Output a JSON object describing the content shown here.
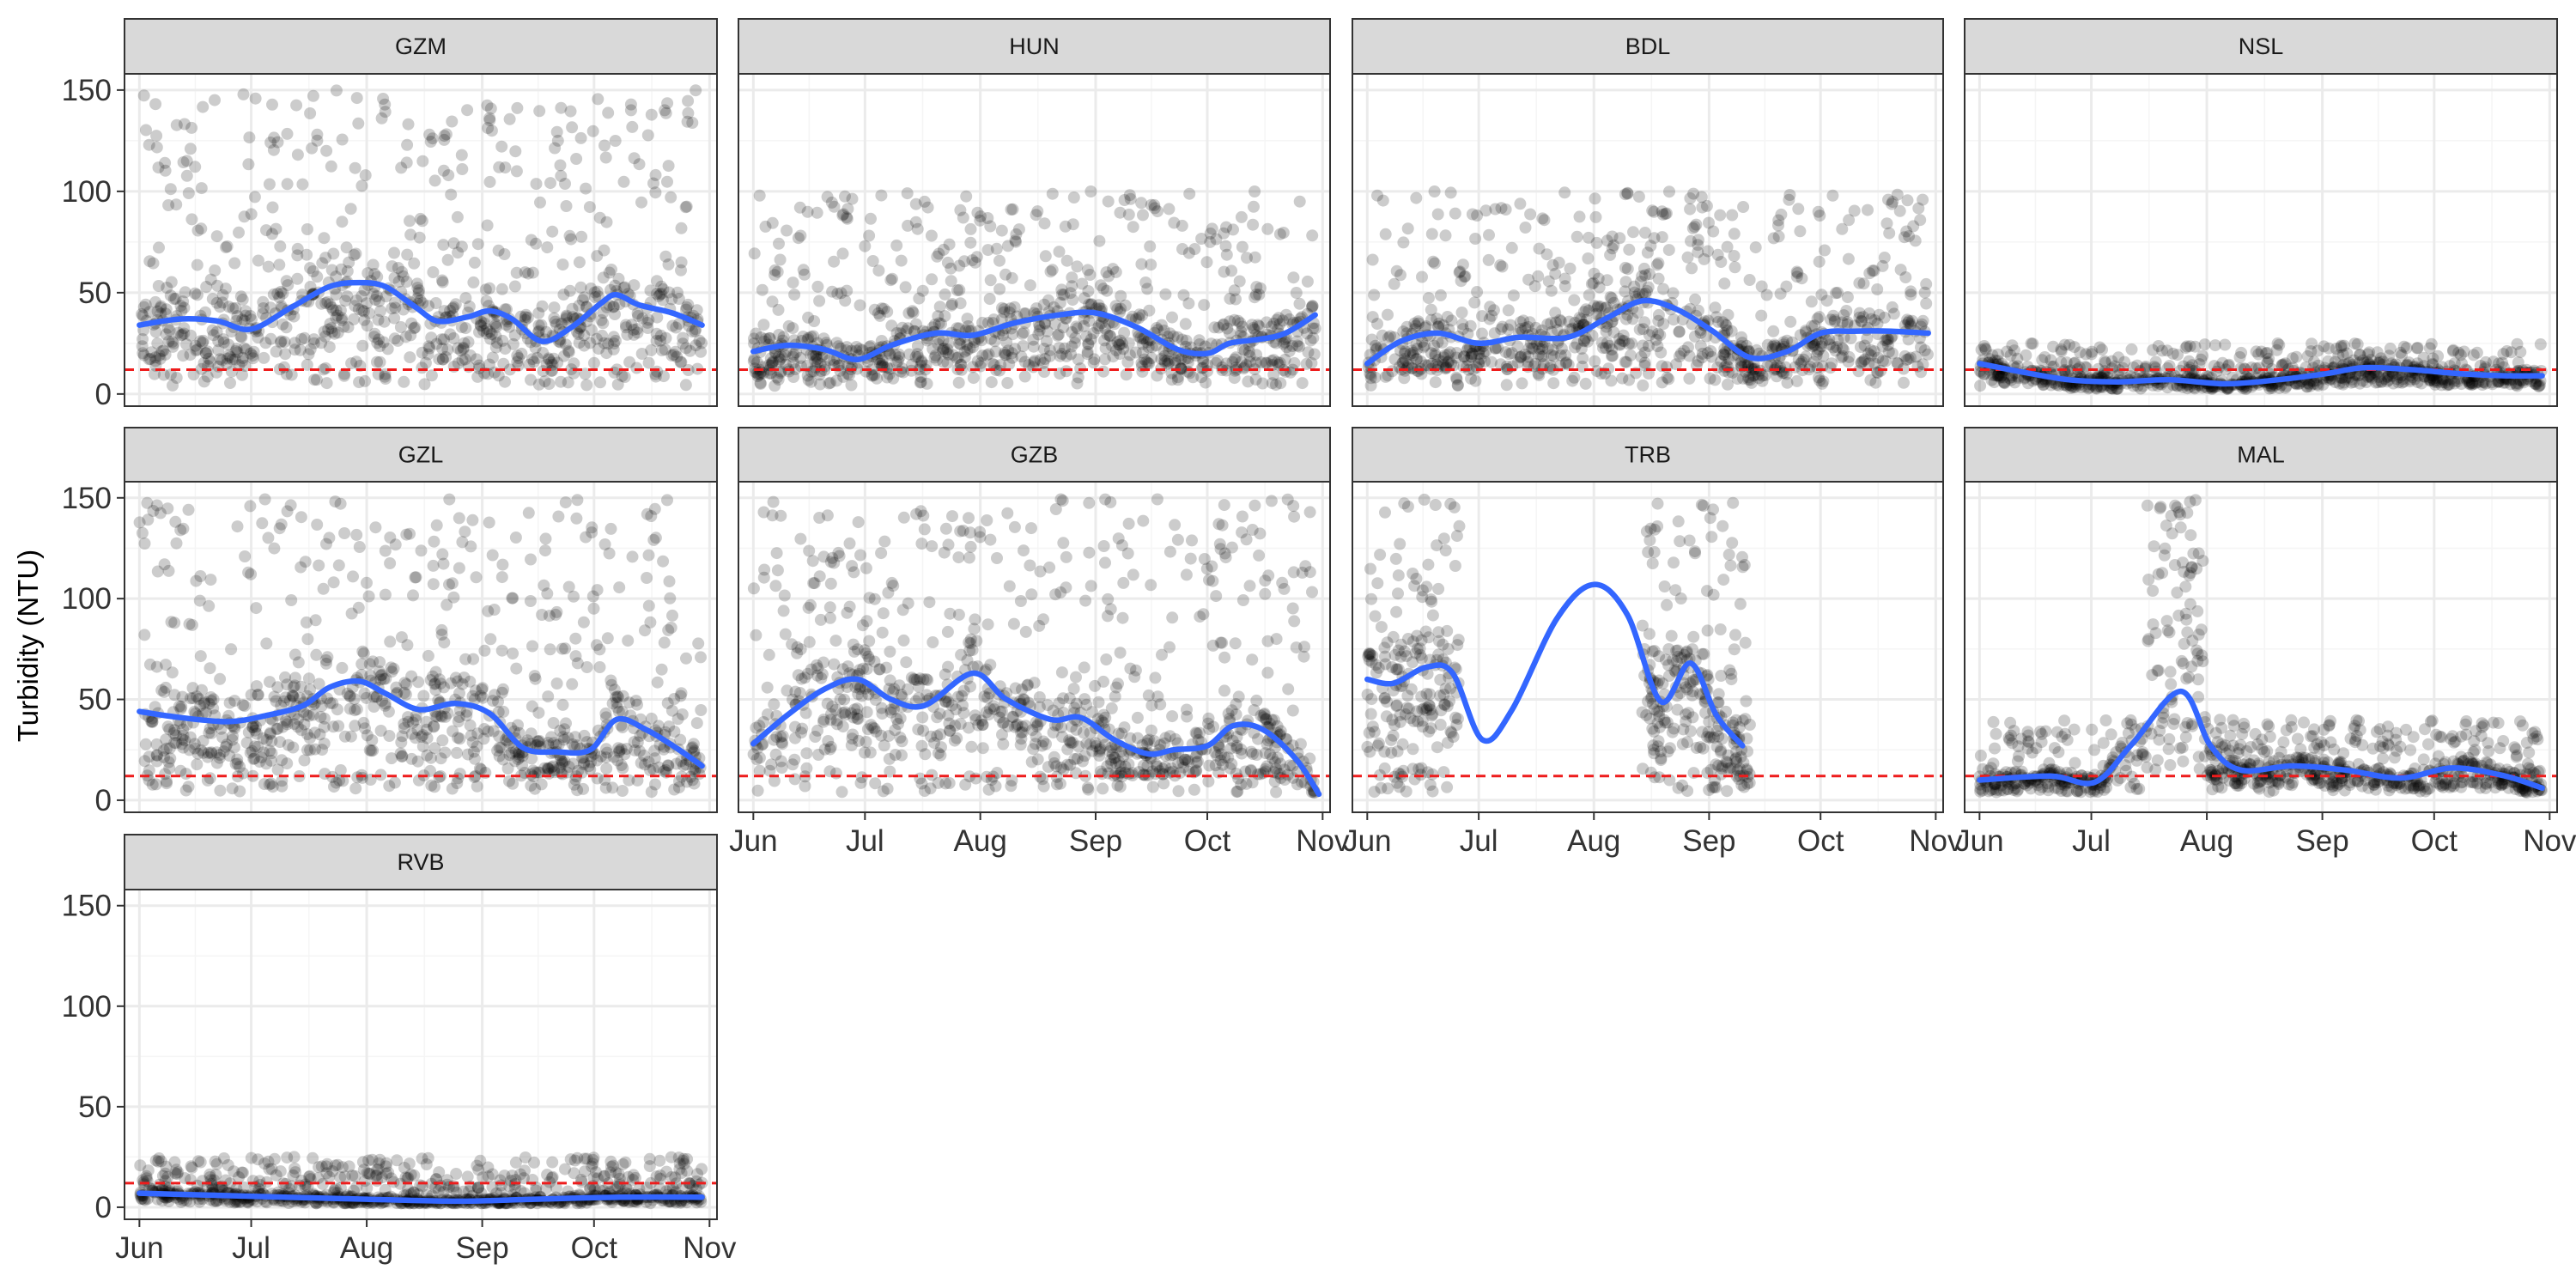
{
  "chart_data": {
    "type": "scatter",
    "ylabel": "Turbidity (NTU)",
    "xlabel": "",
    "x_ticks": [
      "Jun",
      "Jul",
      "Aug",
      "Sep",
      "Oct",
      "Nov"
    ],
    "xlim": [
      "2000-05-28",
      "2000-11-03"
    ],
    "y_ticks": [
      0,
      50,
      100,
      150
    ],
    "ylim": [
      -6,
      158
    ],
    "reference_line": {
      "y": 12,
      "style": "dashed",
      "color": "#ee1c1c"
    },
    "grid": true,
    "colors": {
      "points": "#000000",
      "smooth": "#3366ff",
      "strip": "#d9d9d9",
      "panel_border": "#333333",
      "grid_major": "#ebebeb",
      "grid_minor": "#f5f5f5"
    },
    "panels": [
      {
        "name": "GZM",
        "range": [
          "2000-06-01",
          "2000-10-30"
        ],
        "upper_hi": 150,
        "smooth": [
          [
            "2000-06-01",
            34
          ],
          [
            "2000-06-12",
            37
          ],
          [
            "2000-06-22",
            36
          ],
          [
            "2000-07-01",
            32
          ],
          [
            "2000-07-12",
            43
          ],
          [
            "2000-07-22",
            53
          ],
          [
            "2000-07-30",
            55
          ],
          [
            "2000-08-06",
            53
          ],
          [
            "2000-08-14",
            43
          ],
          [
            "2000-08-20",
            36
          ],
          [
            "2000-08-28",
            38
          ],
          [
            "2000-09-03",
            41
          ],
          [
            "2000-09-09",
            37
          ],
          [
            "2000-09-17",
            26
          ],
          [
            "2000-09-25",
            33
          ],
          [
            "2000-10-03",
            45
          ],
          [
            "2000-10-07",
            49
          ],
          [
            "2000-10-13",
            44
          ],
          [
            "2000-10-22",
            40
          ],
          [
            "2000-10-30",
            34
          ]
        ]
      },
      {
        "name": "HUN",
        "range": [
          "2000-06-01",
          "2000-10-30"
        ],
        "upper_hi": 100,
        "smooth": [
          [
            "2000-06-01",
            21
          ],
          [
            "2000-06-10",
            24
          ],
          [
            "2000-06-20",
            22
          ],
          [
            "2000-06-29",
            17
          ],
          [
            "2000-07-08",
            24
          ],
          [
            "2000-07-20",
            30
          ],
          [
            "2000-07-30",
            29
          ],
          [
            "2000-08-10",
            35
          ],
          [
            "2000-08-22",
            39
          ],
          [
            "2000-09-01",
            40
          ],
          [
            "2000-09-12",
            33
          ],
          [
            "2000-09-23",
            22
          ],
          [
            "2000-10-01",
            20
          ],
          [
            "2000-10-07",
            25
          ],
          [
            "2000-10-15",
            27
          ],
          [
            "2000-10-22",
            30
          ],
          [
            "2000-10-30",
            39
          ]
        ]
      },
      {
        "name": "BDL",
        "range": [
          "2000-06-01",
          "2000-10-30"
        ],
        "upper_hi": 100,
        "smooth": [
          [
            "2000-06-01",
            15
          ],
          [
            "2000-06-10",
            26
          ],
          [
            "2000-06-20",
            30
          ],
          [
            "2000-07-01",
            25
          ],
          [
            "2000-07-12",
            28
          ],
          [
            "2000-07-25",
            28
          ],
          [
            "2000-08-05",
            38
          ],
          [
            "2000-08-14",
            46
          ],
          [
            "2000-08-23",
            42
          ],
          [
            "2000-09-02",
            31
          ],
          [
            "2000-09-12",
            18
          ],
          [
            "2000-09-22",
            21
          ],
          [
            "2000-10-01",
            30
          ],
          [
            "2000-10-10",
            31
          ],
          [
            "2000-10-20",
            31
          ],
          [
            "2000-10-30",
            30
          ]
        ]
      },
      {
        "name": "NSL",
        "range": [
          "2000-06-01",
          "2000-10-30"
        ],
        "upper_hi": 25,
        "smooth": [
          [
            "2000-06-01",
            15
          ],
          [
            "2000-06-12",
            11
          ],
          [
            "2000-06-25",
            7
          ],
          [
            "2000-07-08",
            6
          ],
          [
            "2000-07-22",
            7
          ],
          [
            "2000-08-06",
            5
          ],
          [
            "2000-08-20",
            7
          ],
          [
            "2000-09-02",
            10
          ],
          [
            "2000-09-12",
            13
          ],
          [
            "2000-09-25",
            12
          ],
          [
            "2000-10-08",
            10
          ],
          [
            "2000-10-20",
            9
          ],
          [
            "2000-10-30",
            9
          ]
        ]
      },
      {
        "name": "GZL",
        "range": [
          "2000-06-01",
          "2000-10-30"
        ],
        "upper_hi": 150,
        "smooth": [
          [
            "2000-06-01",
            44
          ],
          [
            "2000-06-12",
            41
          ],
          [
            "2000-06-25",
            39
          ],
          [
            "2000-07-05",
            42
          ],
          [
            "2000-07-15",
            47
          ],
          [
            "2000-07-22",
            56
          ],
          [
            "2000-07-30",
            59
          ],
          [
            "2000-08-06",
            53
          ],
          [
            "2000-08-15",
            45
          ],
          [
            "2000-08-25",
            48
          ],
          [
            "2000-09-03",
            43
          ],
          [
            "2000-09-12",
            26
          ],
          [
            "2000-09-21",
            24
          ],
          [
            "2000-09-30",
            25
          ],
          [
            "2000-10-07",
            40
          ],
          [
            "2000-10-15",
            35
          ],
          [
            "2000-10-23",
            26
          ],
          [
            "2000-10-30",
            17
          ]
        ]
      },
      {
        "name": "GZB",
        "range": [
          "2000-06-01",
          "2000-10-30"
        ],
        "upper_hi": 150,
        "smooth": [
          [
            "2000-06-01",
            28
          ],
          [
            "2000-06-10",
            42
          ],
          [
            "2000-06-20",
            55
          ],
          [
            "2000-06-29",
            60
          ],
          [
            "2000-07-08",
            50
          ],
          [
            "2000-07-17",
            47
          ],
          [
            "2000-07-30",
            63
          ],
          [
            "2000-08-08",
            50
          ],
          [
            "2000-08-20",
            40
          ],
          [
            "2000-08-28",
            41
          ],
          [
            "2000-09-06",
            30
          ],
          [
            "2000-09-15",
            23
          ],
          [
            "2000-09-22",
            25
          ],
          [
            "2000-10-01",
            27
          ],
          [
            "2000-10-08",
            37
          ],
          [
            "2000-10-16",
            35
          ],
          [
            "2000-10-25",
            20
          ],
          [
            "2000-10-31",
            3
          ]
        ]
      },
      {
        "name": "TRB",
        "range": [
          "2000-06-01",
          "2000-09-12"
        ],
        "upper_hi": 150,
        "gaps": [
          [
            "2000-06-26",
            "2000-08-14"
          ]
        ],
        "smooth": [
          [
            "2000-06-01",
            60
          ],
          [
            "2000-06-08",
            58
          ],
          [
            "2000-06-17",
            66
          ],
          [
            "2000-06-24",
            63
          ],
          [
            "2000-07-02",
            30
          ],
          [
            "2000-07-10",
            45
          ],
          [
            "2000-07-22",
            90
          ],
          [
            "2000-08-01",
            107
          ],
          [
            "2000-08-10",
            92
          ],
          [
            "2000-08-19",
            49
          ],
          [
            "2000-08-27",
            68
          ],
          [
            "2000-09-03",
            42
          ],
          [
            "2000-09-10",
            27
          ]
        ]
      },
      {
        "name": "MAL",
        "range": [
          "2000-06-01",
          "2000-10-30"
        ],
        "upper_hi": 40,
        "spike": {
          "from": "2000-07-16",
          "to": "2000-07-31",
          "hi": 150
        },
        "smooth": [
          [
            "2000-06-01",
            10
          ],
          [
            "2000-06-20",
            12
          ],
          [
            "2000-07-02",
            9
          ],
          [
            "2000-07-12",
            28
          ],
          [
            "2000-07-25",
            54
          ],
          [
            "2000-08-02",
            27
          ],
          [
            "2000-08-10",
            15
          ],
          [
            "2000-08-24",
            17
          ],
          [
            "2000-09-07",
            15
          ],
          [
            "2000-09-22",
            11
          ],
          [
            "2000-10-06",
            16
          ],
          [
            "2000-10-20",
            12
          ],
          [
            "2000-10-30",
            6
          ]
        ]
      },
      {
        "name": "RVB",
        "range": [
          "2000-06-01",
          "2000-10-30"
        ],
        "upper_hi": 25,
        "smooth": [
          [
            "2000-06-01",
            7
          ],
          [
            "2000-06-20",
            6
          ],
          [
            "2000-07-10",
            5
          ],
          [
            "2000-08-01",
            4
          ],
          [
            "2000-08-25",
            3
          ],
          [
            "2000-09-15",
            4
          ],
          [
            "2000-10-08",
            5
          ],
          [
            "2000-10-30",
            5
          ]
        ]
      }
    ]
  }
}
